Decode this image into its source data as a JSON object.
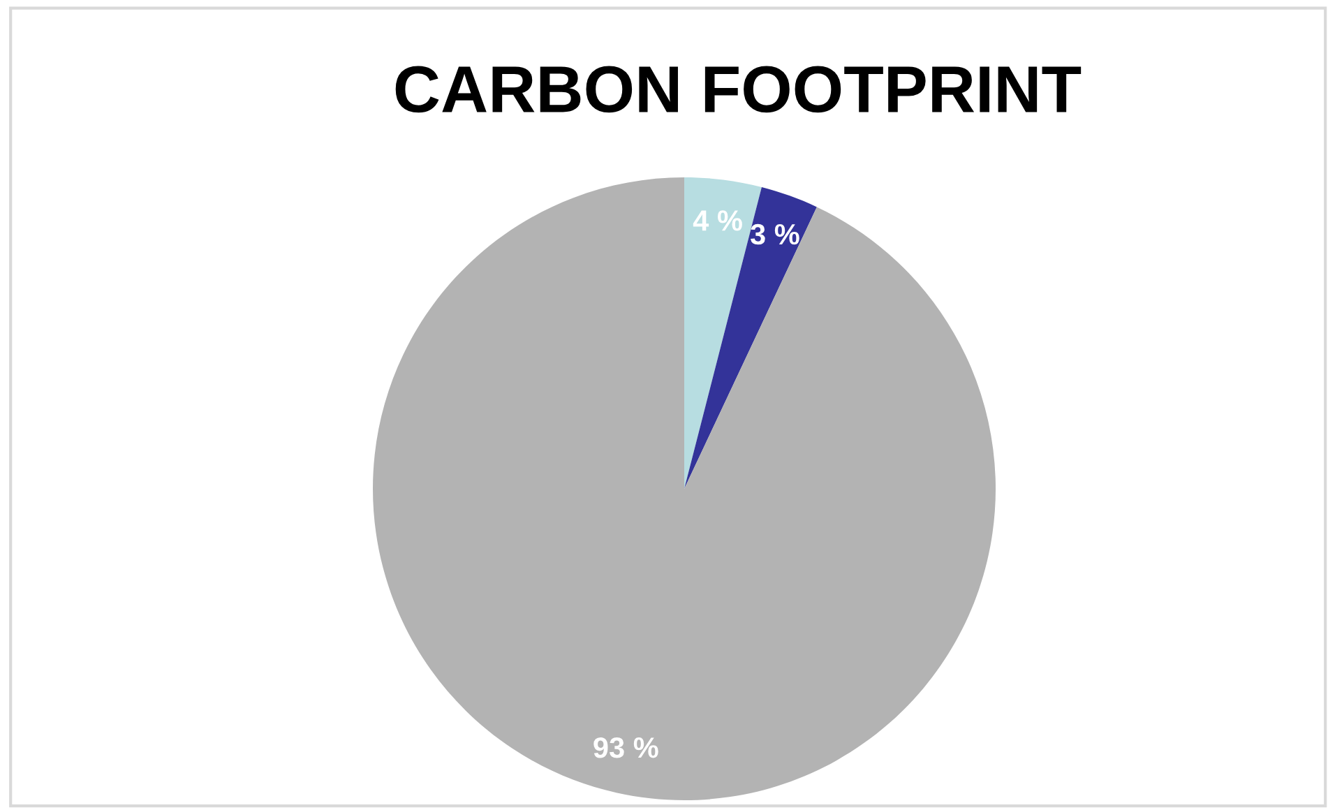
{
  "chart_data": {
    "type": "pie",
    "title": "CARBON FOOTPRINT",
    "categories": [
      null,
      null,
      null
    ],
    "values": [
      4,
      3,
      93
    ],
    "colors": [
      "#b7dde1",
      "#333399",
      "#b3b3b3"
    ],
    "value_labels": [
      "4 %",
      "3 %",
      "93 %"
    ],
    "legend": false
  }
}
